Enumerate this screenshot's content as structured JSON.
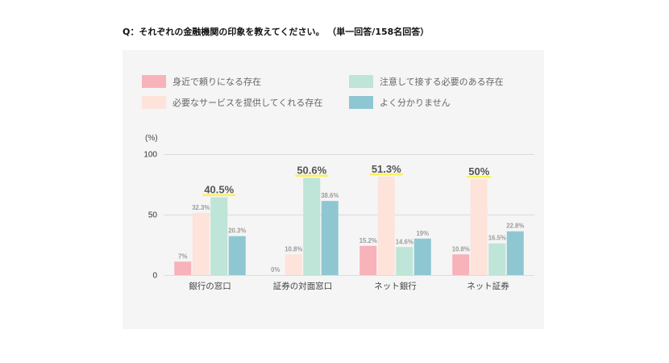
{
  "colors": {
    "page_background": "#ffffff",
    "panel_background": "#f5f5f5",
    "gridline": "#dcdcdc",
    "highlight": "#fbf25a"
  },
  "chart_data": {
    "type": "bar",
    "title": "Q：それぞれの金融機関の印象を教えてください。 （単一回答/158名回答）",
    "ylabel": "(%)",
    "ylim": [
      0,
      100
    ],
    "yticks": [
      0,
      50,
      100
    ],
    "grid": true,
    "legend": "top",
    "categories": [
      "銀行の窓口",
      "証券の対面窓口",
      "ネット銀行",
      "ネット証券"
    ],
    "series": [
      {
        "name": "身近で頼りになる存在",
        "color": "#f7b3b9",
        "values": [
          7,
          0,
          15.2,
          10.8
        ],
        "labels": [
          "7%",
          "0%",
          "15.2%",
          "10.8%"
        ]
      },
      {
        "name": "必要なサービスを提供してくれる存在",
        "color": "#fde3da",
        "values": [
          32.3,
          10.8,
          51.3,
          50
        ],
        "labels": [
          "32.3%",
          "10.8%",
          "51.3%",
          "50%"
        ]
      },
      {
        "name": "注意して接する必要のある存在",
        "color": "#bfe4d8",
        "values": [
          40.5,
          50.6,
          14.6,
          16.5
        ],
        "labels": [
          "40.5%",
          "50.6%",
          "14.6%",
          "16.5%"
        ]
      },
      {
        "name": "よく分かりません",
        "color": "#8ec7d2",
        "values": [
          20.3,
          38.6,
          19,
          22.8
        ],
        "labels": [
          "20.3%",
          "38.6%",
          "19%",
          "22.8%"
        ]
      }
    ]
  }
}
